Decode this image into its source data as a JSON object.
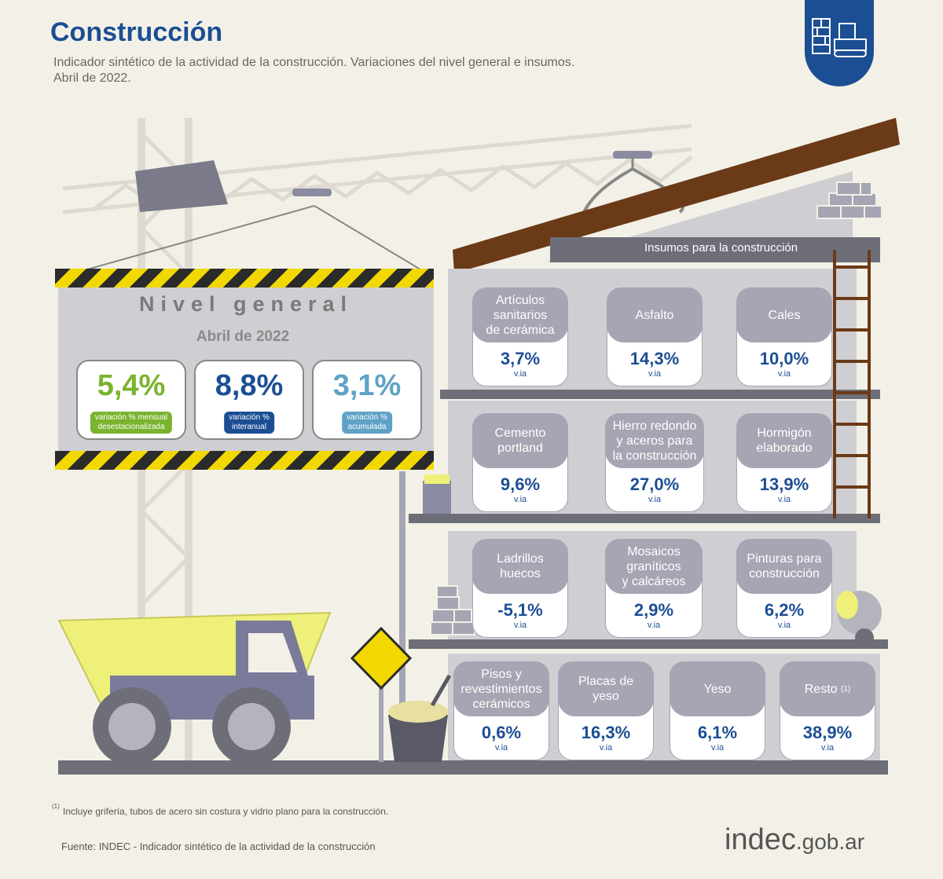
{
  "header": {
    "title": "Construcción",
    "subtitle_line1": "Indicador sintético de la actividad de la construcción. Variaciones del nivel general e insumos.",
    "subtitle_line2": "Abril de 2022."
  },
  "sign": {
    "title": "Nivel general",
    "date": "Abril de 2022",
    "kpis": [
      {
        "value": "5,4%",
        "label": "variación % mensual\ndesestacionalizada",
        "color": "#7ab32e"
      },
      {
        "value": "8,8%",
        "label": "variación %\ninteranual",
        "color": "#1c4e94"
      },
      {
        "value": "3,1%",
        "label": "variación %\nacumulada",
        "color": "#5fa2c6"
      }
    ]
  },
  "insumos": {
    "heading": "Insumos para la construcción",
    "items": [
      {
        "name": "Artículos sanitarios de cerámica",
        "value": "3,7%",
        "unit": "v.ia"
      },
      {
        "name": "Asfalto",
        "value": "14,3%",
        "unit": "v.ia"
      },
      {
        "name": "Cales",
        "value": "10,0%",
        "unit": "v.ia"
      },
      {
        "name": "Cemento portland",
        "value": "9,6%",
        "unit": "v.ia"
      },
      {
        "name": "Hierro redondo y aceros para la construcción",
        "value": "27,0%",
        "unit": "v.ia"
      },
      {
        "name": "Hormigón elaborado",
        "value": "13,9%",
        "unit": "v.ia"
      },
      {
        "name": "Ladrillos huecos",
        "value": "-5,1%",
        "unit": "v.ia"
      },
      {
        "name": "Mosaicos graníticos y calcáreos",
        "value": "2,9%",
        "unit": "v.ia"
      },
      {
        "name": "Pinturas para construcción",
        "value": "6,2%",
        "unit": "v.ia"
      },
      {
        "name": "Pisos y revestimientos cerámicos",
        "value": "0,6%",
        "unit": "v.ia"
      },
      {
        "name": "Placas de yeso",
        "value": "16,3%",
        "unit": "v.ia"
      },
      {
        "name": "Yeso",
        "value": "6,1%",
        "unit": "v.ia"
      },
      {
        "name": "Resto (1)",
        "value": "38,9%",
        "unit": "v.ia"
      }
    ]
  },
  "footnote": "Incluye grifería, tubos de acero sin costura y vidrio plano para la construcción.",
  "footnote_mark": "(1)",
  "source": "Fuente: INDEC - Indicador sintético de la actividad de la construcción",
  "brand": {
    "name": "indec",
    "suffix": ".gob.ar"
  },
  "colors": {
    "brand_blue": "#1c4e94",
    "green": "#7ab32e",
    "light_blue": "#5fa2c6",
    "gray_card": "#a5a5b3",
    "background": "#f3f1e7"
  }
}
